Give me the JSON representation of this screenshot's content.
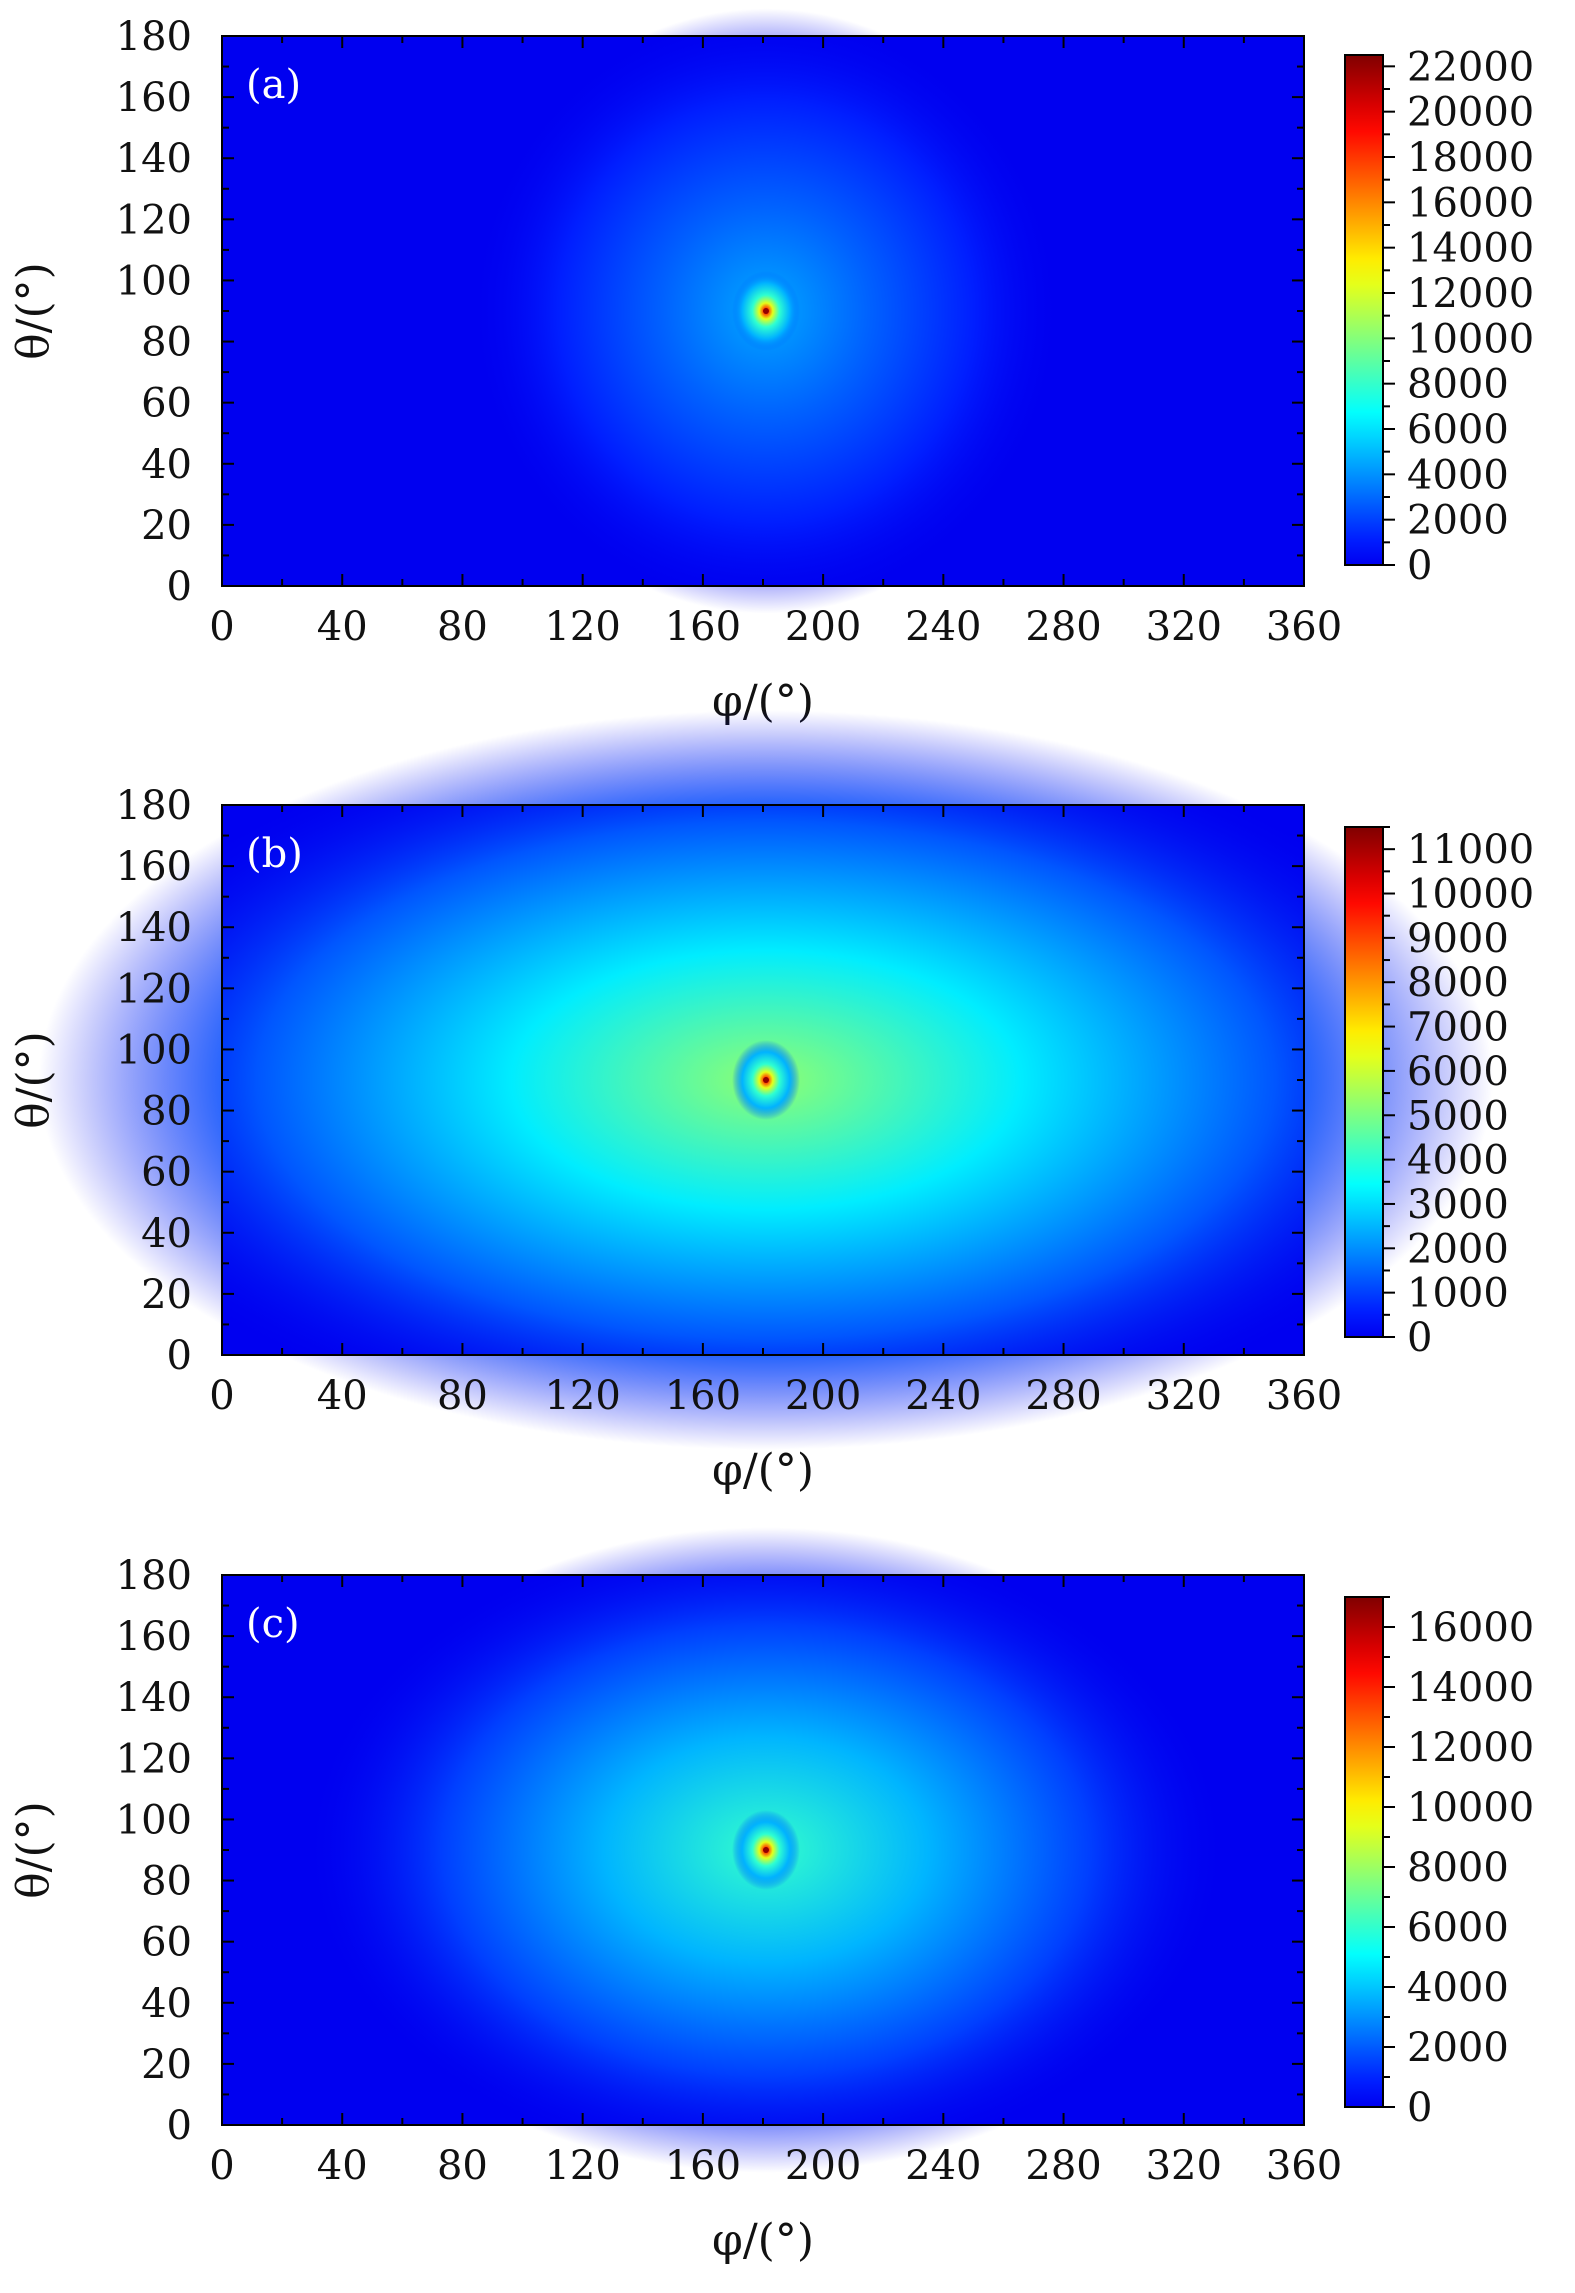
{
  "chart_data": [
    {
      "type": "heatmap",
      "panel_label": "(a)",
      "xlabel": "φ/(°)",
      "ylabel": "θ/(°)",
      "xlim": [
        0,
        360
      ],
      "ylim": [
        0,
        180
      ],
      "x_ticks": [
        "0",
        "40",
        "80",
        "120",
        "160",
        "200",
        "240",
        "280",
        "320",
        "360"
      ],
      "y_ticks": [
        "0",
        "20",
        "40",
        "60",
        "80",
        "100",
        "120",
        "140",
        "160",
        "180"
      ],
      "colorbar": {
        "min": 0,
        "max": 22500,
        "ticks": [
          0,
          2000,
          4000,
          6000,
          8000,
          10000,
          12000,
          14000,
          16000,
          18000,
          20000,
          22000
        ],
        "tick_labels": [
          "0",
          "2000",
          "4000",
          "6000",
          "8000",
          "10000",
          "12000",
          "14000",
          "16000",
          "18000",
          "20000",
          "22000"
        ]
      },
      "colormap": "jet",
      "peak": {
        "phi": 181,
        "theta": 90,
        "value": 22000
      },
      "halo_sigma": {
        "phi": 45,
        "theta": 45
      },
      "halo_level": 0.02
    },
    {
      "type": "heatmap",
      "panel_label": "(b)",
      "xlabel": "φ/(°)",
      "ylabel": "θ/(°)",
      "xlim": [
        0,
        360
      ],
      "ylim": [
        0,
        180
      ],
      "x_ticks": [
        "0",
        "40",
        "80",
        "120",
        "160",
        "200",
        "240",
        "280",
        "320",
        "360"
      ],
      "y_ticks": [
        "0",
        "20",
        "40",
        "60",
        "80",
        "100",
        "120",
        "140",
        "160",
        "180"
      ],
      "colorbar": {
        "min": 0,
        "max": 11500,
        "ticks": [
          0,
          1000,
          2000,
          3000,
          4000,
          5000,
          6000,
          7000,
          8000,
          9000,
          10000,
          11000
        ],
        "tick_labels": [
          "0",
          "1000",
          "2000",
          "3000",
          "4000",
          "5000",
          "6000",
          "7000",
          "8000",
          "9000",
          "10000",
          "11000"
        ]
      },
      "colormap": "jet",
      "peak": {
        "phi": 181,
        "theta": 90,
        "value": 11000
      },
      "halo_sigma": {
        "phi": 110,
        "theta": 55
      },
      "halo_level": 0.045
    },
    {
      "type": "heatmap",
      "panel_label": "(c)",
      "xlabel": "φ/(°)",
      "ylabel": "θ/(°)",
      "xlim": [
        0,
        360
      ],
      "ylim": [
        0,
        180
      ],
      "x_ticks": [
        "0",
        "40",
        "80",
        "120",
        "160",
        "200",
        "240",
        "280",
        "320",
        "360"
      ],
      "y_ticks": [
        "0",
        "20",
        "40",
        "60",
        "80",
        "100",
        "120",
        "140",
        "160",
        "180"
      ],
      "colorbar": {
        "min": 0,
        "max": 17000,
        "ticks": [
          0,
          2000,
          4000,
          6000,
          8000,
          10000,
          12000,
          14000,
          16000
        ],
        "tick_labels": [
          "0",
          "2000",
          "4000",
          "6000",
          "8000",
          "10000",
          "12000",
          "14000",
          "16000"
        ]
      },
      "colormap": "jet",
      "peak": {
        "phi": 181,
        "theta": 90,
        "value": 16500
      },
      "halo_sigma": {
        "phi": 70,
        "theta": 48
      },
      "halo_level": 0.035
    }
  ]
}
